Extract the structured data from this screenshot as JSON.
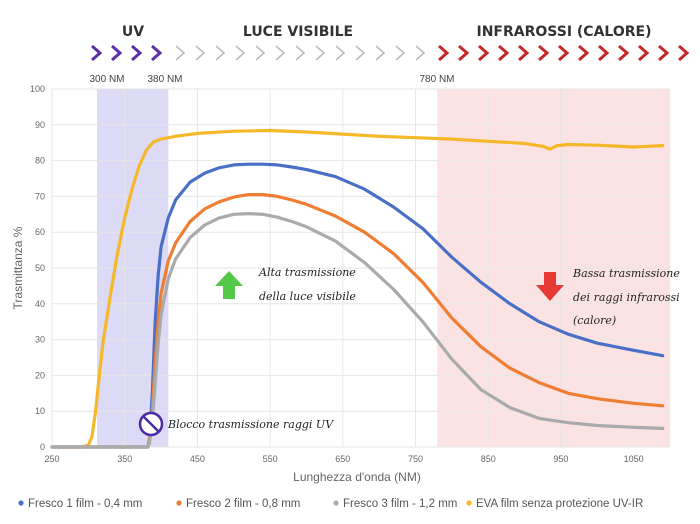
{
  "chart_data": {
    "type": "line",
    "xlabel": "Lunghezza d'onda (NM)",
    "ylabel": "Trasmittanza %",
    "xlim": [
      250,
      1100
    ],
    "ylim": [
      0,
      100
    ],
    "x_ticks": [
      250,
      350,
      450,
      550,
      650,
      750,
      850,
      950,
      1050
    ],
    "y_ticks": [
      0,
      10,
      20,
      30,
      40,
      50,
      60,
      70,
      80,
      90,
      100
    ],
    "grid": true,
    "legend_position": "bottom",
    "bands": [
      {
        "label": "UV",
        "color": "#5b2fa8"
      },
      {
        "label": "LUCE VISIBILE",
        "color": "#bbbbbb"
      },
      {
        "label": "INFRAROSSI (CALORE)",
        "color": "#c62828"
      }
    ],
    "band_markers": [
      "300 NM",
      "380 NM",
      "780 NM"
    ],
    "regions": [
      {
        "name": "UV",
        "x_start": 312,
        "x_end": 410,
        "color": "#dcdaf5"
      },
      {
        "name": "IR",
        "x_start": 780,
        "x_end": 1100,
        "color": "#fbe3e3"
      }
    ],
    "series": [
      {
        "name": "Fresco 1 film - 0,4 mm",
        "color": "#4a6fc7",
        "x": [
          250,
          360,
          382,
          384,
          388,
          392,
          396,
          400,
          410,
          420,
          440,
          460,
          480,
          500,
          520,
          540,
          560,
          580,
          600,
          640,
          680,
          720,
          760,
          800,
          840,
          880,
          920,
          960,
          1000,
          1050,
          1090
        ],
        "y": [
          0,
          0,
          0,
          2,
          15,
          35,
          48,
          56,
          64,
          69,
          74,
          76.5,
          78,
          78.8,
          79,
          79,
          78.8,
          78.2,
          77.5,
          75.5,
          72,
          67,
          61,
          53,
          46,
          40,
          35,
          31.5,
          29,
          27,
          25.5
        ]
      },
      {
        "name": "Fresco 2 film - 0,8 mm",
        "color": "#ef7d32",
        "x": [
          250,
          360,
          382,
          384,
          388,
          392,
          396,
          400,
          410,
          420,
          440,
          460,
          480,
          500,
          520,
          540,
          560,
          580,
          600,
          640,
          680,
          720,
          760,
          800,
          840,
          880,
          920,
          960,
          1000,
          1050,
          1090
        ],
        "y": [
          0,
          0,
          0,
          1.5,
          10,
          24,
          35,
          43,
          52,
          57,
          63,
          66.5,
          68.5,
          69.8,
          70.5,
          70.5,
          70,
          69,
          67.8,
          64.5,
          60,
          54,
          46,
          36,
          28,
          22,
          18,
          15,
          13.5,
          12.2,
          11.5
        ]
      },
      {
        "name": "Fresco 3 film - 1,2 mm",
        "color": "#aaaaaa",
        "x": [
          250,
          360,
          382,
          384,
          388,
          392,
          396,
          400,
          410,
          420,
          440,
          460,
          480,
          500,
          520,
          540,
          560,
          580,
          600,
          640,
          680,
          720,
          760,
          800,
          840,
          880,
          920,
          960,
          1000,
          1050,
          1090
        ],
        "y": [
          0,
          0,
          0,
          1,
          7,
          18,
          29,
          37,
          47,
          52.5,
          58.5,
          62,
          64,
          65,
          65.2,
          65,
          64.2,
          63,
          61.5,
          57.5,
          51.5,
          44,
          35,
          24.5,
          16,
          11,
          8,
          6.8,
          6,
          5.5,
          5.2
        ]
      },
      {
        "name": "EVA film senza protezione UV-IR",
        "color": "#f5b829",
        "x": [
          250,
          290,
          300,
          305,
          310,
          315,
          320,
          330,
          340,
          350,
          360,
          370,
          380,
          390,
          400,
          420,
          450,
          500,
          550,
          600,
          650,
          700,
          750,
          800,
          850,
          900,
          925,
          935,
          945,
          960,
          1000,
          1050,
          1090
        ],
        "y": [
          0,
          0,
          0.5,
          3,
          10,
          20,
          29,
          42,
          54,
          64,
          72,
          78.5,
          83,
          85.3,
          86,
          86.8,
          87.6,
          88.2,
          88.4,
          88,
          87.4,
          86.8,
          86.4,
          86,
          85.4,
          84.8,
          84,
          83.2,
          84.2,
          84.5,
          84.3,
          83.8,
          84.2
        ]
      }
    ],
    "annotations": [
      {
        "text_lines": [
          "Alta trasmissione",
          "della luce visibile"
        ],
        "arrow": "up",
        "arrow_color": "#55c84a"
      },
      {
        "text_lines": [
          "Bassa trasmissione",
          "dei raggi infrarossi",
          "(calore)"
        ],
        "arrow": "down",
        "arrow_color": "#e53935"
      },
      {
        "text_lines": [
          "Blocco trasmissione raggi UV"
        ],
        "icon": "prohibition-icon",
        "icon_color": "#4a2aa5"
      }
    ]
  }
}
